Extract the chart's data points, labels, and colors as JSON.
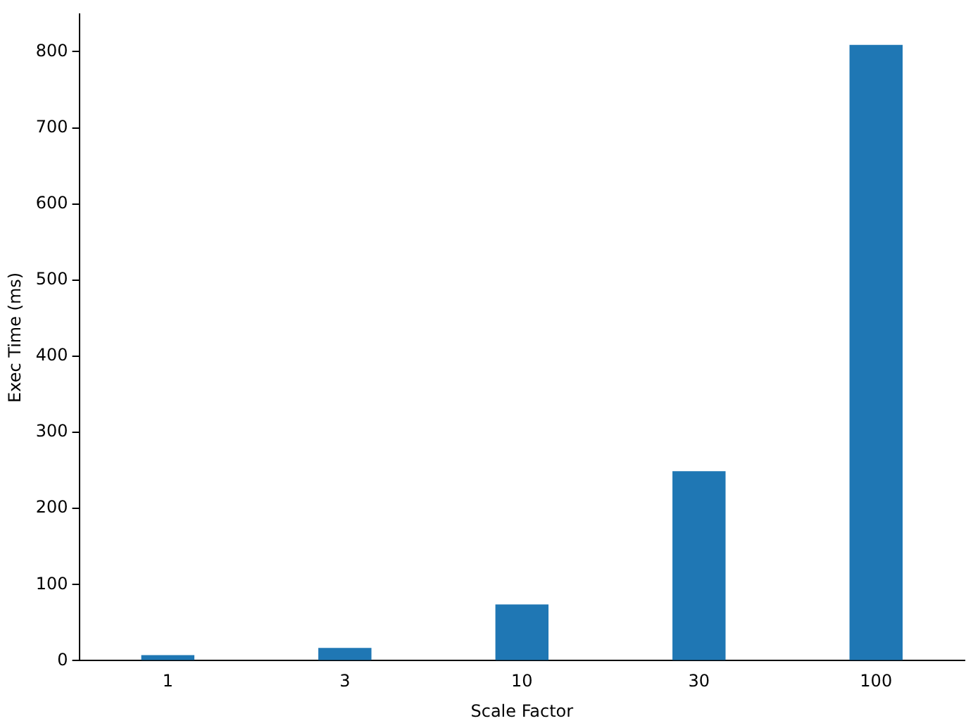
{
  "chart_data": {
    "type": "bar",
    "xlabel": "Scale Factor",
    "ylabel": "Exec Time (ms)",
    "categories": [
      "1",
      "3",
      "10",
      "30",
      "100"
    ],
    "values": [
      7.4,
      16.7,
      74,
      249,
      809
    ],
    "color": "#1f77b4",
    "ylim": [
      0,
      849
    ],
    "yticks": [
      0,
      100,
      200,
      300,
      400,
      500,
      600,
      700,
      800
    ],
    "grid": false,
    "legend": false
  }
}
